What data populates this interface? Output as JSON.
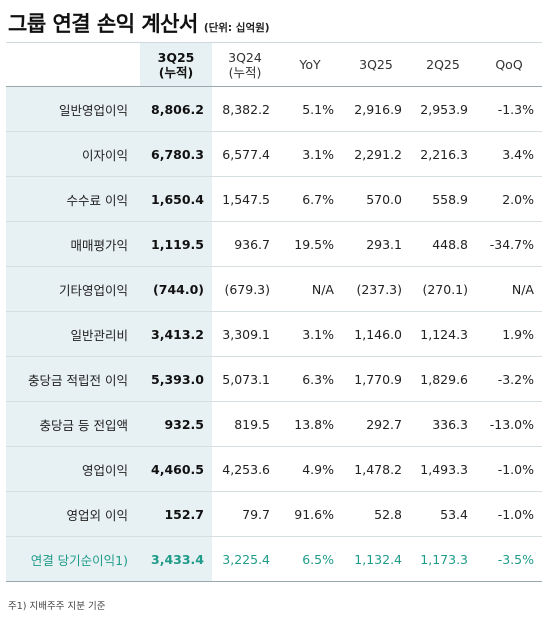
{
  "title": "그룹 연결 손익 계산서",
  "unit": "(단위: 십억원)",
  "columns": [
    {
      "line1": "3Q25",
      "line2": "(누적)"
    },
    {
      "line1": "3Q24",
      "line2": "(누적)"
    },
    {
      "line1": "YoY",
      "line2": ""
    },
    {
      "line1": "3Q25",
      "line2": ""
    },
    {
      "line1": "2Q25",
      "line2": ""
    },
    {
      "line1": "QoQ",
      "line2": ""
    }
  ],
  "rows": [
    {
      "label": "일반영업이익",
      "values": [
        "8,806.2",
        "8,382.2",
        "5.1%",
        "2,916.9",
        "2,953.9",
        "-1.3%"
      ]
    },
    {
      "label": "이자이익",
      "values": [
        "6,780.3",
        "6,577.4",
        "3.1%",
        "2,291.2",
        "2,216.3",
        "3.4%"
      ]
    },
    {
      "label": "수수료 이익",
      "values": [
        "1,650.4",
        "1,547.5",
        "6.7%",
        "570.0",
        "558.9",
        "2.0%"
      ]
    },
    {
      "label": "매매평가익",
      "values": [
        "1,119.5",
        "936.7",
        "19.5%",
        "293.1",
        "448.8",
        "-34.7%"
      ]
    },
    {
      "label": "기타영업이익",
      "values": [
        "(744.0)",
        "(679.3)",
        "N/A",
        "(237.3)",
        "(270.1)",
        "N/A"
      ]
    },
    {
      "label": "일반관리비",
      "values": [
        "3,413.2",
        "3,309.1",
        "3.1%",
        "1,146.0",
        "1,124.3",
        "1.9%"
      ]
    },
    {
      "label": "충당금 적립전 이익",
      "values": [
        "5,393.0",
        "5,073.1",
        "6.3%",
        "1,770.9",
        "1,829.6",
        "-3.2%"
      ]
    },
    {
      "label": "충당금 등 전입액",
      "values": [
        "932.5",
        "819.5",
        "13.8%",
        "292.7",
        "336.3",
        "-13.0%"
      ]
    },
    {
      "label": "영업이익",
      "values": [
        "4,460.5",
        "4,253.6",
        "4.9%",
        "1,478.2",
        "1,493.3",
        "-1.0%"
      ]
    },
    {
      "label": "영업외 이익",
      "values": [
        "152.7",
        "79.7",
        "91.6%",
        "52.8",
        "53.4",
        "-1.0%"
      ]
    },
    {
      "label": "연결 당기순이익1)",
      "values": [
        "3,433.4",
        "3,225.4",
        "6.5%",
        "1,132.4",
        "1,173.3",
        "-3.5%"
      ]
    }
  ],
  "footnote": "주1) 지배주주 지분 기준",
  "colors": {
    "highlight_bg": "#e7f0f3",
    "net_income_text": "#1f9c89"
  }
}
